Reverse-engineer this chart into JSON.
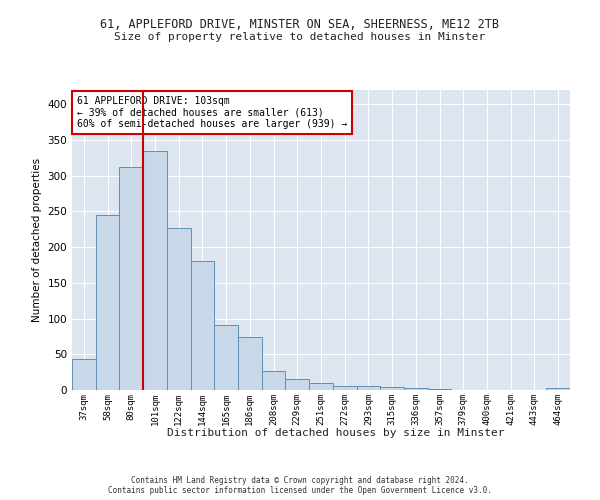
{
  "title1": "61, APPLEFORD DRIVE, MINSTER ON SEA, SHEERNESS, ME12 2TB",
  "title2": "Size of property relative to detached houses in Minster",
  "xlabel": "Distribution of detached houses by size in Minster",
  "ylabel": "Number of detached properties",
  "categories": [
    "37sqm",
    "58sqm",
    "80sqm",
    "101sqm",
    "122sqm",
    "144sqm",
    "165sqm",
    "186sqm",
    "208sqm",
    "229sqm",
    "251sqm",
    "272sqm",
    "293sqm",
    "315sqm",
    "336sqm",
    "357sqm",
    "379sqm",
    "400sqm",
    "421sqm",
    "443sqm",
    "464sqm"
  ],
  "values": [
    44,
    245,
    312,
    335,
    227,
    180,
    91,
    74,
    26,
    16,
    10,
    5,
    5,
    4,
    3,
    1,
    0,
    0,
    0,
    0,
    3
  ],
  "bar_color": "#c8d8e8",
  "bar_edge_color": "#6090b8",
  "red_line_x": 2.5,
  "annotation_text": "61 APPLEFORD DRIVE: 103sqm\n← 39% of detached houses are smaller (613)\n60% of semi-detached houses are larger (939) →",
  "annotation_box_color": "#ffffff",
  "annotation_box_edge_color": "#cc0000",
  "ylim": [
    0,
    420
  ],
  "yticks": [
    0,
    50,
    100,
    150,
    200,
    250,
    300,
    350,
    400
  ],
  "background_color": "#dde5f0",
  "grid_color": "#ffffff",
  "footer": "Contains HM Land Registry data © Crown copyright and database right 2024.\nContains public sector information licensed under the Open Government Licence v3.0."
}
